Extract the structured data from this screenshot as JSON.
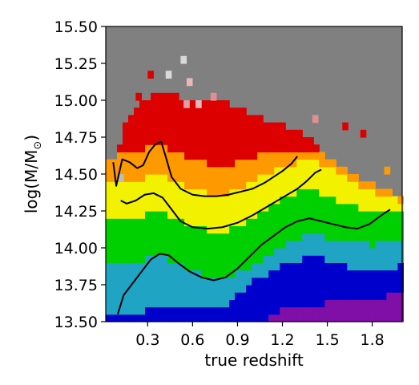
{
  "chart_data": {
    "type": "heatmap",
    "title": "",
    "xlabel": "true redshift",
    "ylabel_main": "log(M/M",
    "ylabel_sub": "⊙",
    "ylabel_close": ")",
    "xlim": [
      0.02,
      2.0
    ],
    "ylim": [
      13.5,
      15.5
    ],
    "x_ticks": [
      0.3,
      0.6,
      0.9,
      1.2,
      1.5,
      1.8
    ],
    "x_tick_labels": [
      "0.3",
      "0.6",
      "0.9",
      "1.2",
      "1.5",
      "1.8"
    ],
    "y_ticks": [
      13.5,
      13.75,
      14.0,
      14.25,
      14.5,
      14.75,
      15.0,
      15.25,
      15.5
    ],
    "y_tick_labels": [
      "13.50",
      "13.75",
      "14.00",
      "14.25",
      "14.50",
      "14.75",
      "15.00",
      "15.25",
      "15.50"
    ],
    "grid": false,
    "legend": "none",
    "background_color": "#808080",
    "cell_size": {
      "dx": 0.0375,
      "dy": 0.05
    },
    "band_colors": [
      "#7f0fa6",
      "#0000cc",
      "#20a4c4",
      "#00d000",
      "#f2f200",
      "#ff9900",
      "#dd0000"
    ],
    "band_boundaries": [
      {
        "x": 0.02,
        "b": [
          13.4,
          13.55,
          13.9,
          14.2,
          14.45,
          14.65
        ]
      },
      {
        "x": 0.2,
        "b": [
          13.4,
          13.55,
          13.9,
          14.2,
          14.45,
          14.65
        ]
      },
      {
        "x": 0.4,
        "b": [
          13.4,
          13.6,
          13.95,
          14.25,
          14.5,
          14.7
        ]
      },
      {
        "x": 0.6,
        "b": [
          13.4,
          13.6,
          13.85,
          14.15,
          14.4,
          14.6
        ]
      },
      {
        "x": 0.8,
        "b": [
          13.4,
          13.58,
          13.78,
          14.1,
          14.35,
          14.55
        ]
      },
      {
        "x": 1.0,
        "b": [
          13.45,
          13.78,
          13.88,
          14.2,
          14.45,
          14.62
        ]
      },
      {
        "x": 1.2,
        "b": [
          13.6,
          13.88,
          14.02,
          14.35,
          14.55,
          14.65
        ]
      },
      {
        "x": 1.4,
        "b": [
          13.6,
          13.95,
          14.1,
          14.4,
          14.6,
          14.67
        ]
      },
      {
        "x": 1.6,
        "b": [
          13.65,
          13.88,
          14.05,
          14.3,
          14.5,
          14.55
        ]
      },
      {
        "x": 1.8,
        "b": [
          13.65,
          13.85,
          14.02,
          14.25,
          14.38,
          14.45
        ]
      },
      {
        "x": 2.0,
        "b": [
          13.7,
          13.88,
          14.05,
          14.25,
          14.32,
          14.35
        ]
      }
    ],
    "red_top_boundary": [
      {
        "x": 0.1,
        "y": 14.62
      },
      {
        "x": 0.15,
        "y": 14.85
      },
      {
        "x": 0.25,
        "y": 15.0
      },
      {
        "x": 0.4,
        "y": 15.05
      },
      {
        "x": 0.6,
        "y": 15.0
      },
      {
        "x": 0.8,
        "y": 15.0
      },
      {
        "x": 1.0,
        "y": 14.9
      },
      {
        "x": 1.15,
        "y": 14.85
      },
      {
        "x": 1.3,
        "y": 14.8
      },
      {
        "x": 1.42,
        "y": 14.7
      },
      {
        "x": 1.55,
        "y": 14.58
      },
      {
        "x": 1.65,
        "y": 14.5
      },
      {
        "x": 1.85,
        "y": 14.42
      },
      {
        "x": 2.0,
        "y": 14.35
      }
    ],
    "extra_cells": [
      {
        "x": 0.52,
        "y": 15.25,
        "color": "#d9d9d9"
      },
      {
        "x": 0.42,
        "y": 15.15,
        "color": "#d9d9d9"
      },
      {
        "x": 0.54,
        "y": 14.95,
        "color": "#e0a0a0"
      },
      {
        "x": 0.62,
        "y": 14.95,
        "color": "#e8b8b8"
      },
      {
        "x": 0.72,
        "y": 15.0,
        "color": "#e09090"
      },
      {
        "x": 1.4,
        "y": 14.85,
        "color": "#e09090"
      },
      {
        "x": 0.3,
        "y": 15.15,
        "color": "#dd0000"
      },
      {
        "x": 0.22,
        "y": 15.0,
        "color": "#dd0000"
      },
      {
        "x": 0.56,
        "y": 15.1,
        "color": "#e8b8b8"
      },
      {
        "x": 1.6,
        "y": 14.8,
        "color": "#dd0000"
      },
      {
        "x": 1.72,
        "y": 14.75,
        "color": "#dd0000"
      },
      {
        "x": 0.1,
        "y": 14.45,
        "color": "#bcbcbc"
      },
      {
        "x": 1.88,
        "y": 14.5,
        "color": "#ff9900"
      }
    ],
    "series": [
      {
        "x": [
          0.07,
          0.09,
          0.13,
          0.18,
          0.23,
          0.27,
          0.31,
          0.35,
          0.39,
          0.42,
          0.46,
          0.52,
          0.6,
          0.68,
          0.76,
          0.84,
          0.92,
          1.0,
          1.08,
          1.14,
          1.2,
          1.26,
          1.3
        ],
        "y": [
          14.58,
          14.42,
          14.6,
          14.58,
          14.54,
          14.56,
          14.65,
          14.7,
          14.72,
          14.62,
          14.48,
          14.4,
          14.36,
          14.35,
          14.35,
          14.36,
          14.38,
          14.4,
          14.44,
          14.48,
          14.52,
          14.57,
          14.62
        ]
      },
      {
        "x": [
          0.12,
          0.16,
          0.22,
          0.28,
          0.34,
          0.4,
          0.46,
          0.52,
          0.6,
          0.7,
          0.8,
          0.9,
          1.0,
          1.1,
          1.2,
          1.3,
          1.36,
          1.42,
          1.46
        ],
        "y": [
          14.32,
          14.3,
          14.32,
          14.36,
          14.37,
          14.34,
          14.26,
          14.18,
          14.14,
          14.13,
          14.14,
          14.17,
          14.22,
          14.28,
          14.34,
          14.4,
          14.45,
          14.51,
          14.53
        ]
      },
      {
        "x": [
          0.1,
          0.14,
          0.2,
          0.26,
          0.32,
          0.38,
          0.44,
          0.5,
          0.58,
          0.66,
          0.74,
          0.82,
          0.9,
          0.98,
          1.06,
          1.14,
          1.22,
          1.3,
          1.38,
          1.46,
          1.54,
          1.62,
          1.7,
          1.78,
          1.86,
          1.92
        ],
        "y": [
          13.55,
          13.68,
          13.76,
          13.84,
          13.92,
          13.96,
          13.95,
          13.9,
          13.84,
          13.8,
          13.78,
          13.8,
          13.86,
          13.94,
          14.02,
          14.08,
          14.14,
          14.18,
          14.2,
          14.18,
          14.16,
          14.14,
          14.13,
          14.16,
          14.22,
          14.26
        ]
      }
    ]
  }
}
